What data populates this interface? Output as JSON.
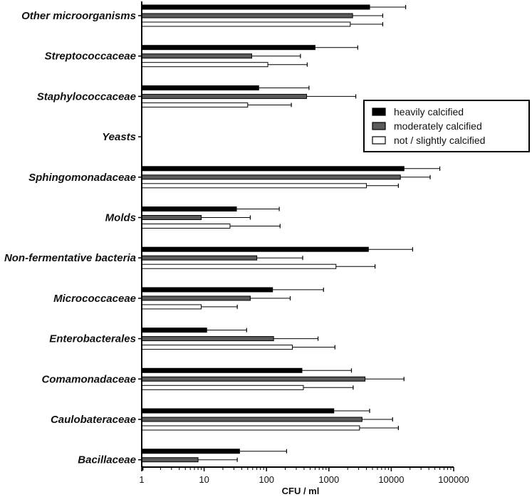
{
  "chart_data": {
    "type": "bar",
    "orientation": "horizontal",
    "x_scale": "log",
    "xlim": [
      1,
      100000
    ],
    "xlabel": "CFU / ml",
    "ylabel": "",
    "title": "",
    "x_ticks": [
      "1",
      "10",
      "100",
      "1000",
      "10000",
      "100000"
    ],
    "x_tick_values": [
      1,
      10,
      100,
      1000,
      10000,
      100000
    ],
    "categories": [
      "Other microorganisms",
      "Streptococcaceae",
      "Staphylococcaceae",
      "Yeasts",
      "Sphingomonadaceae",
      "Molds",
      "Non-fermentative bacteria",
      "Micrococcaceae",
      "Enterobacterales",
      "Comamonadaceae",
      "Caulobateraceae",
      "Bacillaceae"
    ],
    "series": [
      {
        "name": "heavily calcified",
        "color": "#000000",
        "values": [
          4500,
          600,
          75,
          null,
          16000,
          33,
          4300,
          125,
          11,
          370,
          1200,
          37
        ],
        "error_upper": [
          17000,
          2900,
          480,
          null,
          60000,
          160,
          22000,
          820,
          48,
          2300,
          4500,
          210
        ]
      },
      {
        "name": "moderately calcified",
        "color": "#5a5a5a",
        "values": [
          2400,
          58,
          440,
          null,
          14000,
          9,
          70,
          55,
          130,
          3800,
          3400,
          8
        ],
        "error_upper": [
          7300,
          350,
          2700,
          null,
          42000,
          55,
          380,
          240,
          670,
          16000,
          10500,
          34
        ]
      },
      {
        "name": "not / slightly calcified",
        "color": "#ffffff",
        "values": [
          2200,
          105,
          50,
          null,
          4000,
          26,
          1300,
          9,
          260,
          390,
          3100,
          1.02
        ],
        "error_upper": [
          7300,
          450,
          250,
          null,
          13000,
          165,
          5500,
          34,
          1250,
          2450,
          13000,
          1.05
        ]
      }
    ],
    "legend_position": "right"
  }
}
